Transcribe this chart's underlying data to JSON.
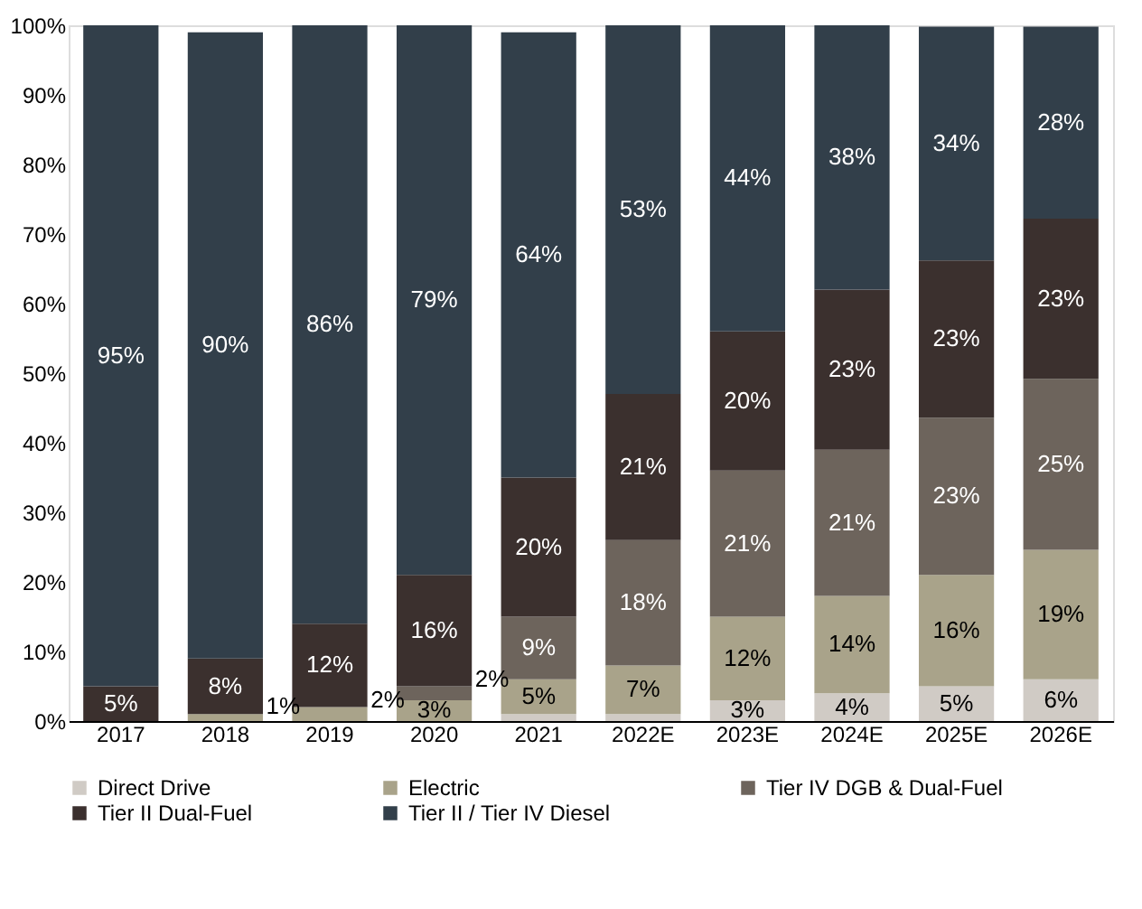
{
  "chart_data": {
    "type": "bar",
    "stacked": true,
    "categories": [
      "2017",
      "2018",
      "2019",
      "2020",
      "2021",
      "2022E",
      "2023E",
      "2024E",
      "2025E",
      "2026E"
    ],
    "series": [
      {
        "name": "Direct Drive",
        "color": "#d0cbc5",
        "values": [
          0,
          0,
          0,
          0,
          1,
          1,
          3,
          4,
          5,
          6
        ],
        "value_labels": [
          null,
          null,
          null,
          null,
          null,
          null,
          "3%",
          "4%",
          "5%",
          "6%"
        ]
      },
      {
        "name": "Electric",
        "color": "#a9a38a",
        "values": [
          0,
          1,
          2,
          3,
          5,
          7,
          12,
          14,
          16,
          18.6
        ],
        "value_labels": [
          null,
          "1%",
          "2%",
          "3%",
          "5%",
          "7%",
          "12%",
          "14%",
          "16%",
          "19%"
        ]
      },
      {
        "name": "Tier IV DGB & Dual-Fuel",
        "color": "#6d645c",
        "values": [
          0,
          0,
          0,
          2,
          9,
          18,
          21,
          21,
          22.6,
          24.6
        ],
        "value_labels": [
          null,
          null,
          null,
          "2%",
          "9%",
          "18%",
          "21%",
          "21%",
          "23%",
          "25%"
        ]
      },
      {
        "name": "Tier II Dual-Fuel",
        "color": "#3b302e",
        "values": [
          5,
          8,
          12,
          16,
          20,
          21,
          20,
          23,
          22.6,
          23
        ],
        "value_labels": [
          "5%",
          "8%",
          "12%",
          "16%",
          "20%",
          "21%",
          "20%",
          "23%",
          "23%",
          "23%"
        ]
      },
      {
        "name": "Tier II / Tier IV Diesel",
        "color": "#323f4a",
        "values": [
          95,
          90,
          86,
          79,
          64,
          53,
          44,
          38,
          33.6,
          27.6
        ],
        "value_labels": [
          "95%",
          "90%",
          "86%",
          "79%",
          "64%",
          "53%",
          "44%",
          "38%",
          "34%",
          "28%"
        ]
      }
    ],
    "ylim": [
      0,
      100
    ],
    "yticks": [
      {
        "value": 0,
        "label": "0%"
      },
      {
        "value": 10,
        "label": "10%"
      },
      {
        "value": 20,
        "label": "20%"
      },
      {
        "value": 30,
        "label": "30%"
      },
      {
        "value": 40,
        "label": "40%"
      },
      {
        "value": 50,
        "label": "50%"
      },
      {
        "value": 60,
        "label": "60%"
      },
      {
        "value": 70,
        "label": "70%"
      },
      {
        "value": 80,
        "label": "80%"
      },
      {
        "value": 90,
        "label": "90%"
      },
      {
        "value": 100,
        "label": "100%"
      }
    ],
    "grid": false,
    "legend": "bottom"
  }
}
